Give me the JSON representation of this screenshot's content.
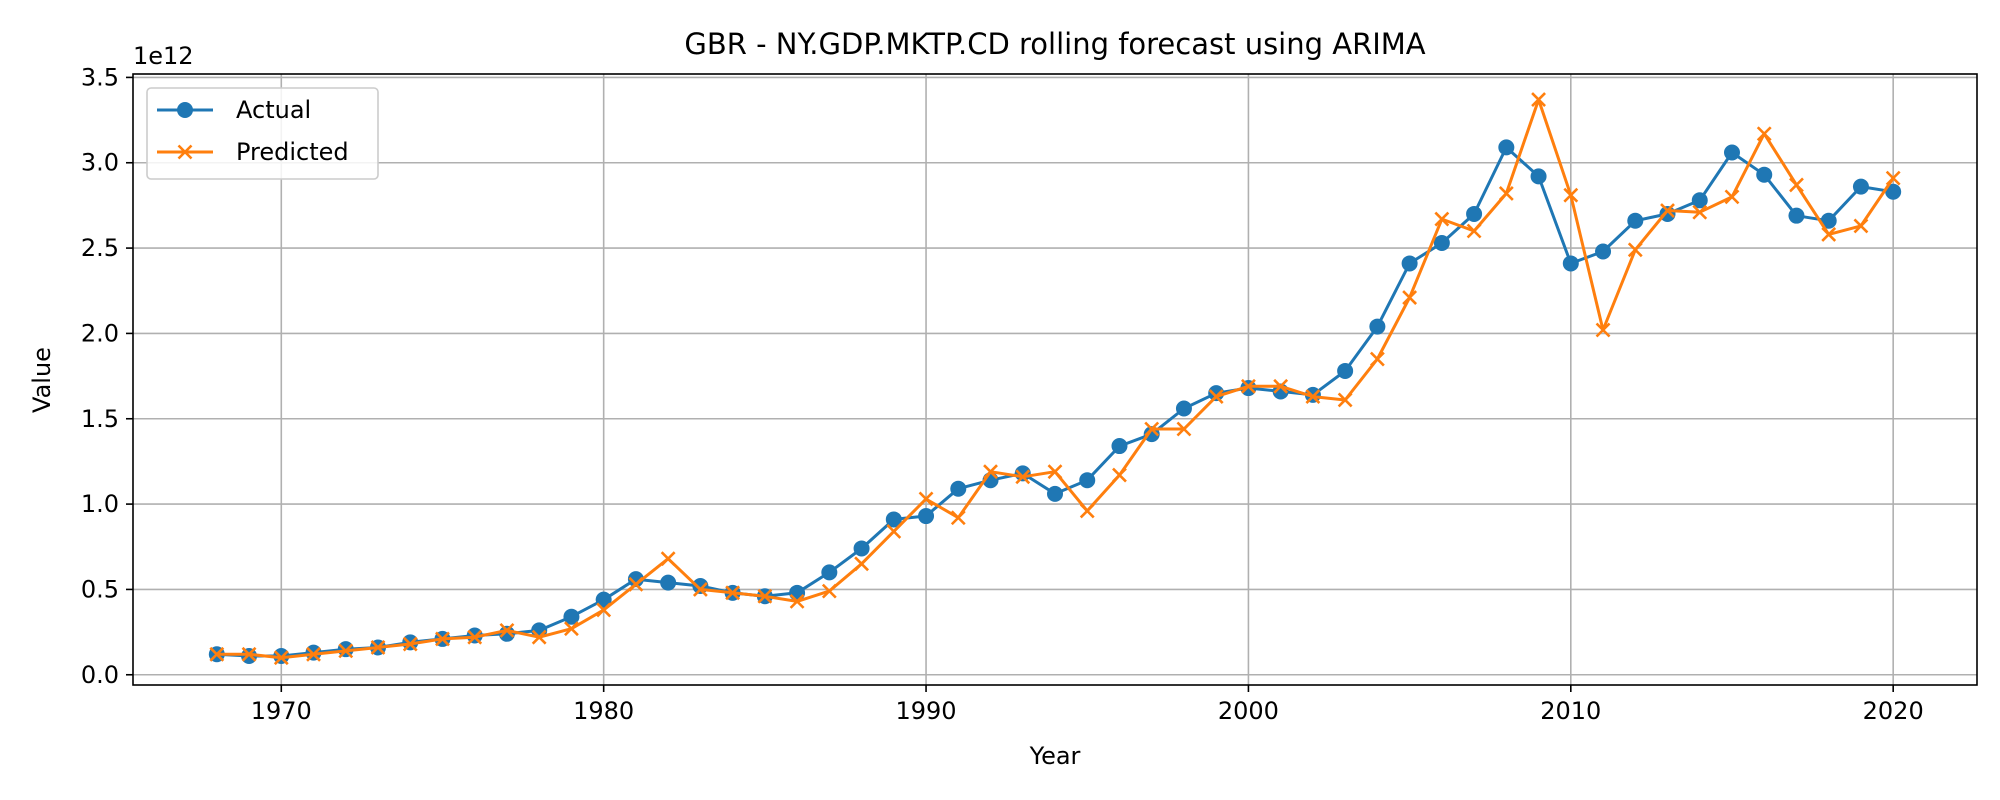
{
  "chart_data": {
    "type": "line",
    "title": "GBR - NY.GDP.MKTP.CD rolling forecast using ARIMA",
    "xlabel": "Year",
    "ylabel": "Value",
    "y_scale_label": "1e12",
    "xlim": [
      1965.4,
      2022.6
    ],
    "ylim": [
      -0.06,
      3.52
    ],
    "y_multiplier": 1000000000000.0,
    "x_ticks": [
      1970,
      1980,
      1990,
      2000,
      2010,
      2020
    ],
    "x_tick_labels": [
      "1970",
      "1980",
      "1990",
      "2000",
      "2010",
      "2020"
    ],
    "y_ticks": [
      0.0,
      0.5,
      1.0,
      1.5,
      2.0,
      2.5,
      3.0,
      3.5
    ],
    "y_tick_labels": [
      "0.0",
      "0.5",
      "1.0",
      "1.5",
      "2.0",
      "2.5",
      "3.0",
      "3.5"
    ],
    "grid": true,
    "legend_position": "top-left",
    "x": [
      1968,
      1969,
      1970,
      1971,
      1972,
      1973,
      1974,
      1975,
      1976,
      1977,
      1978,
      1979,
      1980,
      1981,
      1982,
      1983,
      1984,
      1985,
      1986,
      1987,
      1988,
      1989,
      1990,
      1991,
      1992,
      1993,
      1994,
      1995,
      1996,
      1997,
      1998,
      1999,
      2000,
      2001,
      2002,
      2003,
      2004,
      2005,
      2006,
      2007,
      2008,
      2009,
      2010,
      2011,
      2012,
      2013,
      2014,
      2015,
      2016,
      2017,
      2018,
      2019,
      2020
    ],
    "series": [
      {
        "name": "Actual",
        "color": "#1f77b4",
        "marker": "circle",
        "values": [
          0.12,
          0.11,
          0.11,
          0.13,
          0.15,
          0.16,
          0.19,
          0.21,
          0.23,
          0.24,
          0.26,
          0.34,
          0.44,
          0.56,
          0.54,
          0.52,
          0.48,
          0.46,
          0.48,
          0.6,
          0.74,
          0.91,
          0.93,
          1.09,
          1.14,
          1.18,
          1.06,
          1.14,
          1.34,
          1.41,
          1.56,
          1.65,
          1.68,
          1.66,
          1.64,
          1.78,
          2.04,
          2.41,
          2.53,
          2.7,
          3.09,
          2.92,
          2.41,
          2.48,
          2.66,
          2.7,
          2.78,
          3.06,
          2.93,
          2.69,
          2.66,
          2.86,
          2.83
        ]
      },
      {
        "name": "Predicted",
        "color": "#ff7f0e",
        "marker": "x",
        "values": [
          0.12,
          0.12,
          0.1,
          0.12,
          0.14,
          0.16,
          0.18,
          0.21,
          0.22,
          0.26,
          0.22,
          0.27,
          0.38,
          0.53,
          0.68,
          0.5,
          0.48,
          0.46,
          0.43,
          0.49,
          0.65,
          0.84,
          1.03,
          0.92,
          1.19,
          1.16,
          1.19,
          0.96,
          1.17,
          1.44,
          1.44,
          1.63,
          1.69,
          1.69,
          1.63,
          1.61,
          1.85,
          2.21,
          2.67,
          2.6,
          2.82,
          3.37,
          2.81,
          2.02,
          2.49,
          2.72,
          2.71,
          2.8,
          3.17,
          2.87,
          2.58,
          2.63,
          2.91
        ]
      }
    ]
  }
}
